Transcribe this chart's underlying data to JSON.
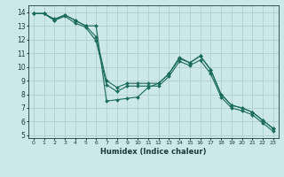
{
  "xlabel": "Humidex (Indice chaleur)",
  "background_color": "#cce8e8",
  "grid_color_major": "#aacccc",
  "grid_color_minor": "#ddeeee",
  "line_color": "#1a6b5a",
  "xlim": [
    -0.5,
    23.5
  ],
  "ylim": [
    4.8,
    14.5
  ],
  "yticks": [
    5,
    6,
    7,
    8,
    9,
    10,
    11,
    12,
    13,
    14
  ],
  "xticks": [
    0,
    1,
    2,
    3,
    4,
    5,
    6,
    7,
    8,
    9,
    10,
    11,
    12,
    13,
    14,
    15,
    16,
    17,
    18,
    19,
    20,
    21,
    22,
    23
  ],
  "line1_x": [
    0,
    1,
    2,
    3,
    4,
    5,
    6,
    7,
    8,
    9,
    10,
    11,
    12,
    13,
    14,
    15,
    16,
    17,
    18,
    19,
    20,
    21,
    22,
    23
  ],
  "line1_y": [
    13.9,
    13.9,
    13.5,
    13.8,
    13.4,
    13.0,
    12.2,
    9.0,
    8.5,
    8.8,
    8.8,
    8.8,
    8.8,
    9.5,
    10.6,
    10.3,
    10.8,
    9.8,
    8.0,
    7.2,
    7.0,
    6.7,
    6.1,
    5.5
  ],
  "line2_x": [
    0,
    1,
    2,
    3,
    4,
    5,
    6,
    7,
    8,
    9,
    10,
    11,
    12,
    13,
    14,
    15,
    16,
    17,
    18,
    19,
    20,
    21,
    22,
    23
  ],
  "line2_y": [
    13.9,
    13.9,
    13.4,
    13.7,
    13.2,
    12.9,
    11.9,
    8.7,
    8.2,
    8.6,
    8.6,
    8.6,
    8.6,
    9.3,
    10.4,
    10.1,
    10.5,
    9.5,
    7.8,
    7.0,
    6.8,
    6.5,
    5.9,
    5.3
  ],
  "line3_x": [
    0,
    1,
    2,
    3,
    4,
    5,
    6,
    7,
    8,
    9,
    10,
    11,
    12,
    13,
    14,
    15,
    16,
    17,
    18,
    19,
    20,
    21,
    22,
    23
  ],
  "line3_y": [
    13.9,
    13.9,
    13.4,
    13.8,
    13.4,
    13.0,
    13.0,
    7.5,
    7.6,
    7.7,
    7.8,
    8.5,
    8.8,
    9.5,
    10.7,
    10.3,
    10.8,
    9.8,
    8.0,
    7.2,
    7.0,
    6.7,
    6.1,
    5.5
  ]
}
